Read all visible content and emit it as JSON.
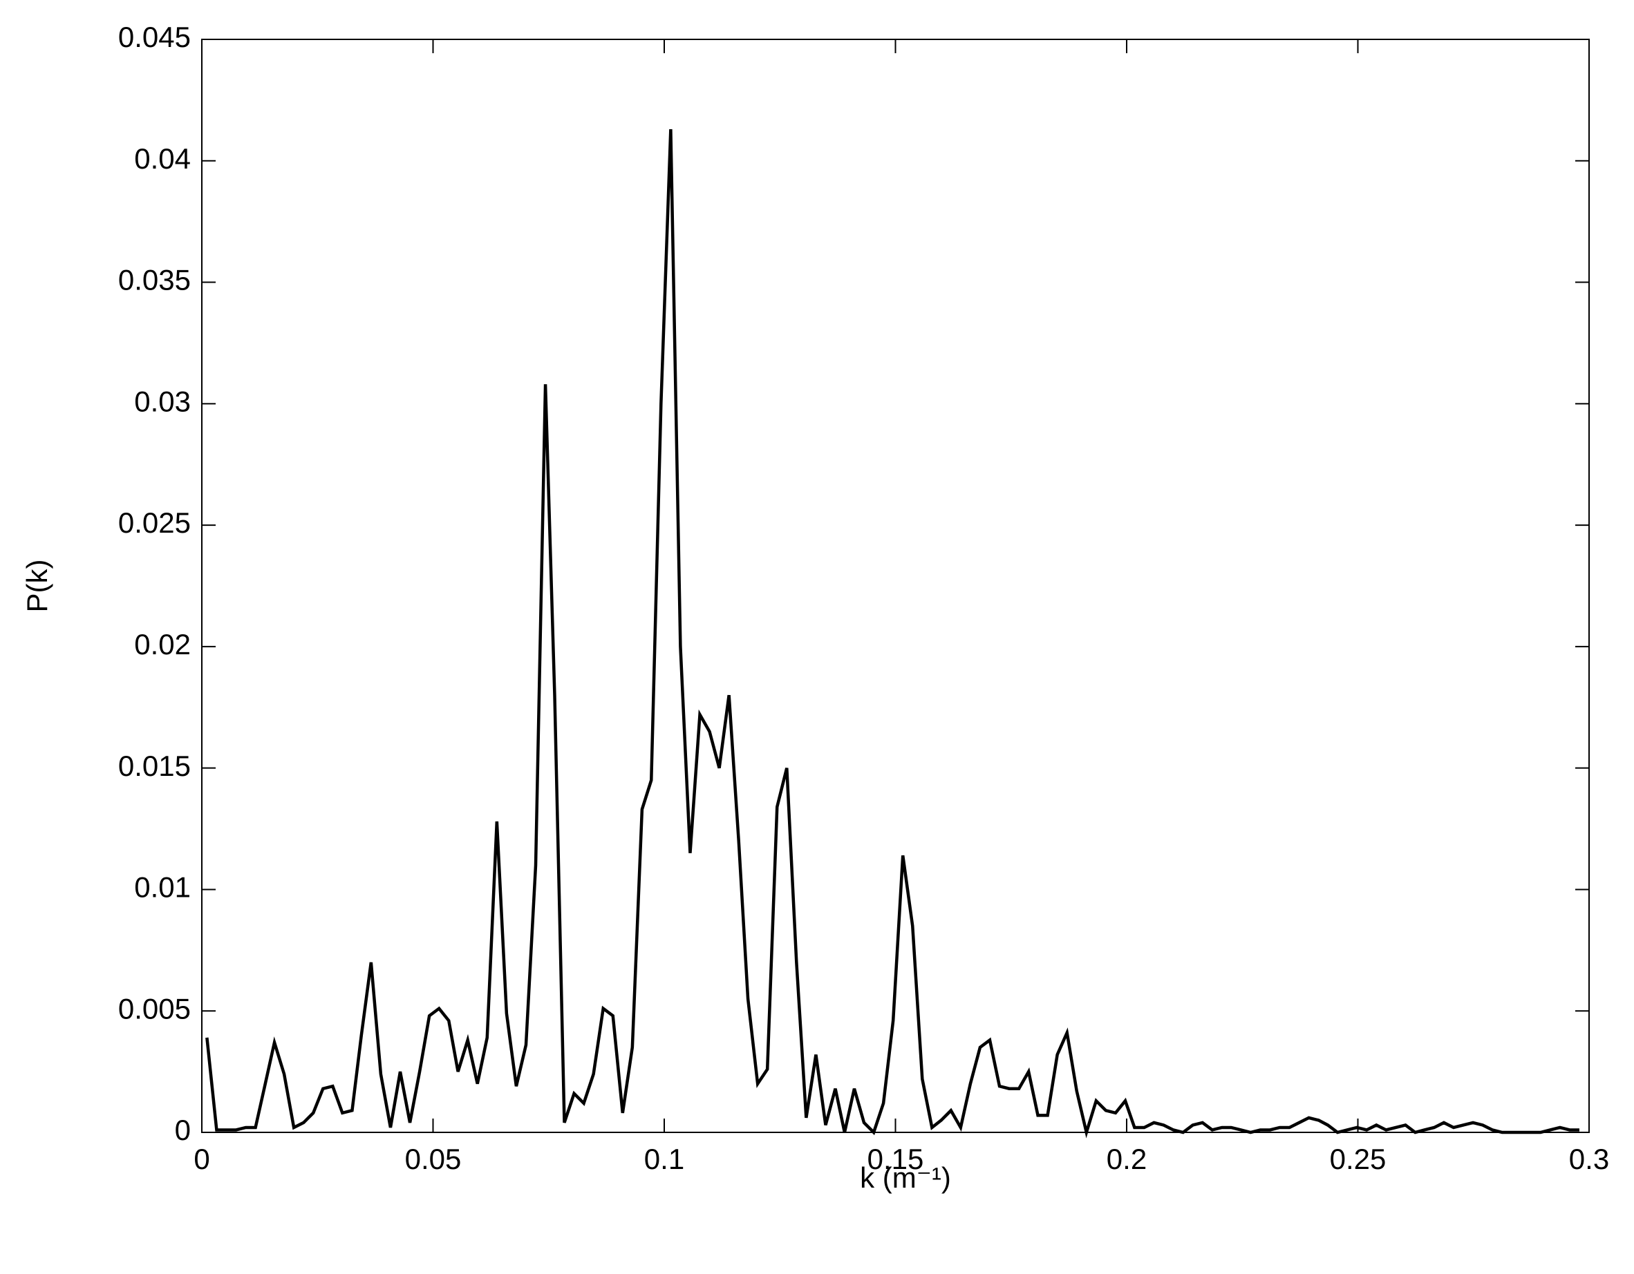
{
  "chart_data": {
    "type": "line",
    "xlabel": "k (m⁻¹)",
    "ylabel": "P(k)",
    "color": "#000000",
    "xlim": [
      0,
      0.3
    ],
    "ylim": [
      0,
      0.045
    ],
    "xticks": [
      0,
      0.05,
      0.1,
      0.15,
      0.2,
      0.25,
      0.3
    ],
    "yticks": [
      0,
      0.005,
      0.01,
      0.015,
      0.02,
      0.025,
      0.03,
      0.035,
      0.04,
      0.045
    ],
    "x": [
      0.0011,
      0.0032,
      0.0053,
      0.0074,
      0.0095,
      0.0116,
      0.0136,
      0.0157,
      0.0178,
      0.0199,
      0.022,
      0.0241,
      0.0262,
      0.0283,
      0.0304,
      0.0325,
      0.0345,
      0.0366,
      0.0387,
      0.0408,
      0.0429,
      0.045,
      0.0471,
      0.0492,
      0.0513,
      0.0534,
      0.0554,
      0.0575,
      0.0596,
      0.0617,
      0.0638,
      0.0659,
      0.068,
      0.0701,
      0.0722,
      0.0743,
      0.0763,
      0.0784,
      0.0805,
      0.0826,
      0.0847,
      0.0868,
      0.0889,
      0.091,
      0.0931,
      0.0952,
      0.0972,
      0.0993,
      0.1014,
      0.1035,
      0.1056,
      0.1077,
      0.1098,
      0.1119,
      0.114,
      0.1161,
      0.1181,
      0.1202,
      0.1223,
      0.1244,
      0.1265,
      0.1286,
      0.1307,
      0.1328,
      0.1349,
      0.137,
      0.139,
      0.1411,
      0.1432,
      0.1453,
      0.1474,
      0.1495,
      0.1516,
      0.1537,
      0.1558,
      0.1579,
      0.1599,
      0.162,
      0.1641,
      0.1662,
      0.1683,
      0.1704,
      0.1725,
      0.1746,
      0.1767,
      0.1788,
      0.1808,
      0.1829,
      0.185,
      0.1871,
      0.1892,
      0.1913,
      0.1934,
      0.1955,
      0.1976,
      0.1997,
      0.2017,
      0.2038,
      0.2059,
      0.208,
      0.2101,
      0.2122,
      0.2143,
      0.2164,
      0.2185,
      0.2206,
      0.2226,
      0.2247,
      0.2268,
      0.2289,
      0.231,
      0.2331,
      0.2352,
      0.2373,
      0.2394,
      0.2415,
      0.2435,
      0.2456,
      0.2477,
      0.2498,
      0.2519,
      0.254,
      0.2561,
      0.2582,
      0.2603,
      0.2624,
      0.2644,
      0.2665,
      0.2686,
      0.2707,
      0.2728,
      0.2749,
      0.277,
      0.2791,
      0.2812,
      0.2833,
      0.2853,
      0.2874,
      0.2895,
      0.2916,
      0.2937,
      0.2958,
      0.2979
    ],
    "values": [
      0.0039,
      0.0001,
      0.0001,
      0.0001,
      0.0002,
      0.0002,
      0.0019,
      0.0037,
      0.0024,
      0.0002,
      0.0004,
      0.0008,
      0.0018,
      0.0019,
      0.0008,
      0.0009,
      0.004,
      0.007,
      0.0024,
      0.0002,
      0.0025,
      0.0004,
      0.0025,
      0.0048,
      0.0051,
      0.0046,
      0.0025,
      0.0038,
      0.002,
      0.0039,
      0.0128,
      0.0049,
      0.0019,
      0.0036,
      0.011,
      0.0308,
      0.018,
      0.0004,
      0.0016,
      0.0012,
      0.0024,
      0.0051,
      0.0048,
      0.0008,
      0.0035,
      0.0133,
      0.0145,
      0.03,
      0.0413,
      0.02,
      0.0115,
      0.0172,
      0.0165,
      0.015,
      0.018,
      0.012,
      0.0055,
      0.002,
      0.0026,
      0.0134,
      0.015,
      0.007,
      0.0006,
      0.0032,
      0.0003,
      0.0018,
      0.0,
      0.0018,
      0.0004,
      0.0,
      0.0012,
      0.0046,
      0.0114,
      0.0085,
      0.0022,
      0.0002,
      0.0005,
      0.0009,
      0.0002,
      0.002,
      0.0035,
      0.0038,
      0.0019,
      0.0018,
      0.0018,
      0.0025,
      0.0007,
      0.0007,
      0.0032,
      0.0041,
      0.0017,
      0.0,
      0.0013,
      0.0009,
      0.0008,
      0.0013,
      0.0002,
      0.0002,
      0.0004,
      0.0003,
      0.0001,
      0.0,
      0.0003,
      0.0004,
      0.0001,
      0.0002,
      0.0002,
      0.0001,
      0.0,
      0.0001,
      0.0001,
      0.0002,
      0.0002,
      0.0004,
      0.0006,
      0.0005,
      0.0003,
      0.0,
      0.0001,
      0.0002,
      0.0001,
      0.0003,
      0.0001,
      0.0002,
      0.0003,
      0.0,
      0.0001,
      0.0002,
      0.0004,
      0.0002,
      0.0003,
      0.0004,
      0.0003,
      0.0001,
      0.0,
      0.0,
      0.0,
      0.0,
      0.0,
      0.0001,
      0.0002,
      0.0001,
      0.0001
    ]
  }
}
